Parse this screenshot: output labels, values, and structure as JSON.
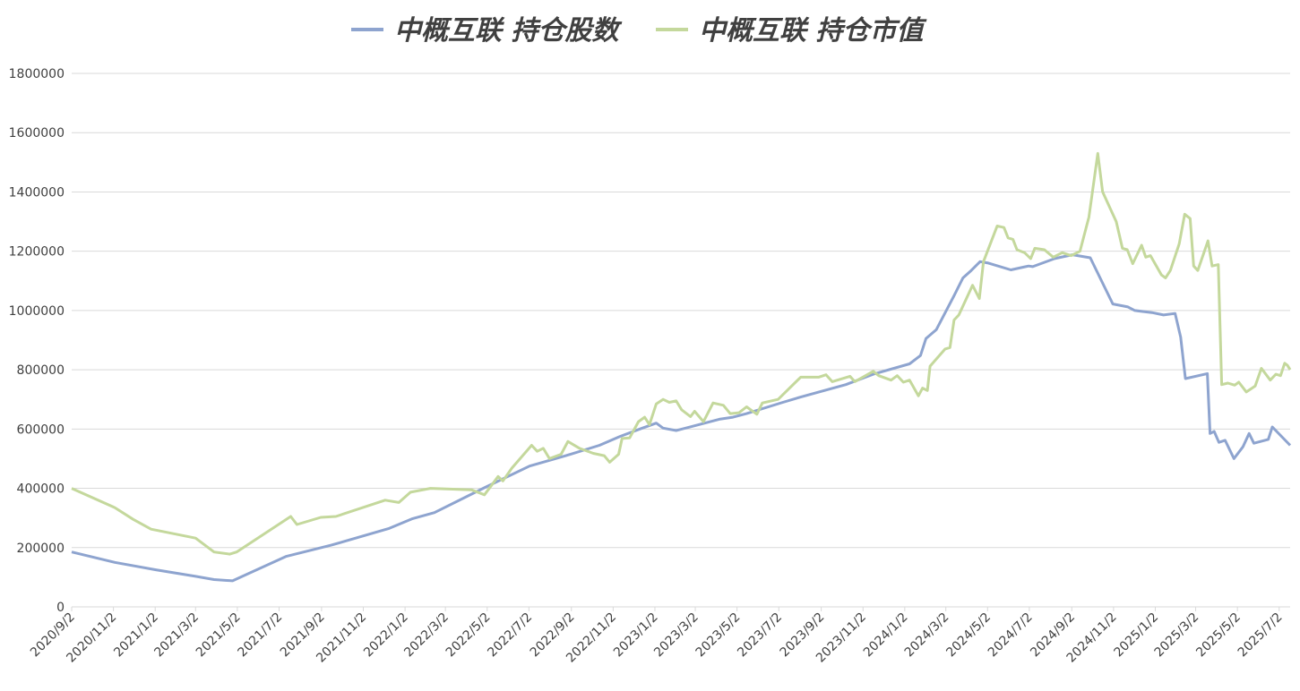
{
  "chart_data": {
    "type": "line",
    "legend": "top",
    "grid": true,
    "ylim": [
      0,
      1800000
    ],
    "yticks": [
      0,
      200000,
      400000,
      600000,
      800000,
      1000000,
      1200000,
      1400000,
      1600000,
      1800000
    ],
    "xlim": [
      "2020/9/2",
      "2025/7/18"
    ],
    "xticks": [
      "2020/9/2",
      "2020/11/2",
      "2021/1/2",
      "2021/3/2",
      "2021/5/2",
      "2021/7/2",
      "2021/9/2",
      "2021/11/2",
      "2022/1/2",
      "2022/3/2",
      "2022/5/2",
      "2022/7/2",
      "2022/9/2",
      "2022/11/2",
      "2023/1/2",
      "2023/3/2",
      "2023/5/2",
      "2023/7/2",
      "2023/9/2",
      "2023/11/2",
      "2024/1/2",
      "2024/3/2",
      "2024/5/2",
      "2024/7/2",
      "2024/9/2",
      "2024/11/2",
      "2025/1/2",
      "2025/3/2",
      "2025/5/2",
      "2025/7/2"
    ],
    "series": [
      {
        "name": "中概互联 持仓股数",
        "color": "#8ea4cf",
        "x": [
          "2020/9/2",
          "2020/11/4",
          "2021/1/3",
          "2021/3/2",
          "2021/3/29",
          "2021/4/25",
          "2021/7/12",
          "2021/9/16",
          "2021/12/10",
          "2022/1/12",
          "2022/2/14",
          "2022/4/28",
          "2022/7/3",
          "2022/8/25",
          "2022/10/13",
          "2022/11/12",
          "2022/12/11",
          "2023/1/4",
          "2023/1/14",
          "2023/2/2",
          "2023/2/19",
          "2023/4/6",
          "2023/4/26",
          "2023/5/16",
          "2023/7/8",
          "2023/8/3",
          "2023/10/8",
          "2023/11/17",
          "2024/1/9",
          "2024/1/25",
          "2024/2/2",
          "2024/2/17",
          "2024/3/14",
          "2024/3/27",
          "2024/4/8",
          "2024/4/21",
          "2024/5/3",
          "2024/6/5",
          "2024/7/1",
          "2024/7/7",
          "2024/8/8",
          "2024/9/3",
          "2024/9/29",
          "2024/11/1",
          "2024/11/23",
          "2024/12/3",
          "2024/12/28",
          "2025/1/14",
          "2025/1/31",
          "2025/2/8",
          "2025/2/15",
          "2025/3/19",
          "2025/3/23",
          "2025/3/29",
          "2025/4/5",
          "2025/4/14",
          "2025/4/27",
          "2025/5/10",
          "2025/5/19",
          "2025/5/26",
          "2025/6/16",
          "2025/6/22",
          "2025/7/18"
        ],
        "values": [
          185000,
          150000,
          125000,
          103000,
          92000,
          88000,
          170000,
          208000,
          265000,
          297000,
          318000,
          402000,
          475000,
          510000,
          545000,
          575000,
          600000,
          620000,
          603000,
          595000,
          605000,
          633000,
          640000,
          652000,
          690000,
          708000,
          750000,
          785000,
          820000,
          848000,
          905000,
          935000,
          1050000,
          1110000,
          1135000,
          1165000,
          1160000,
          1137000,
          1150000,
          1148000,
          1175000,
          1188000,
          1178000,
          1022000,
          1012000,
          1000000,
          993000,
          985000,
          990000,
          910000,
          770000,
          787000,
          585000,
          592000,
          555000,
          562000,
          500000,
          540000,
          585000,
          552000,
          565000,
          607000,
          545000
        ]
      },
      {
        "name": "中概互联 持仓市值",
        "color": "#c4d89c",
        "x": [
          "2020/9/2",
          "2020/11/4",
          "2020/12/1",
          "2020/12/27",
          "2021/3/2",
          "2021/3/29",
          "2021/4/21",
          "2021/5/1",
          "2021/7/19",
          "2021/7/28",
          "2021/9/1",
          "2021/9/23",
          "2021/12/4",
          "2021/12/24",
          "2022/1/10",
          "2022/2/8",
          "2022/4/9",
          "2022/4/28",
          "2022/5/18",
          "2022/5/25",
          "2022/6/7",
          "2022/7/6",
          "2022/7/14",
          "2022/7/23",
          "2022/8/1",
          "2022/8/18",
          "2022/8/28",
          "2022/9/14",
          "2022/10/4",
          "2022/10/20",
          "2022/10/28",
          "2022/11/10",
          "2022/11/15",
          "2022/11/26",
          "2022/12/9",
          "2022/12/18",
          "2022/12/25",
          "2023/1/4",
          "2023/1/14",
          "2023/1/23",
          "2023/2/2",
          "2023/2/10",
          "2023/2/23",
          "2023/3/1",
          "2023/3/14",
          "2023/3/28",
          "2023/4/12",
          "2023/4/22",
          "2023/5/5",
          "2023/5/16",
          "2023/5/31",
          "2023/6/8",
          "2023/7/1",
          "2023/8/3",
          "2023/8/29",
          "2023/9/9",
          "2023/9/18",
          "2023/10/14",
          "2023/10/21",
          "2023/11/17",
          "2023/11/25",
          "2023/12/13",
          "2023/12/22",
          "2023/12/31",
          "2024/1/9",
          "2024/1/22",
          "2024/1/28",
          "2024/2/4",
          "2024/2/8",
          "2024/3/1",
          "2024/3/8",
          "2024/3/14",
          "2024/3/21",
          "2024/4/10",
          "2024/4/20",
          "2024/4/26",
          "2024/5/16",
          "2024/5/26",
          "2024/6/1",
          "2024/6/8",
          "2024/6/14",
          "2024/6/25",
          "2024/7/4",
          "2024/7/10",
          "2024/7/24",
          "2024/8/6",
          "2024/8/19",
          "2024/9/1",
          "2024/9/14",
          "2024/9/27",
          "2024/10/10",
          "2024/10/17",
          "2024/11/6",
          "2024/11/15",
          "2024/11/22",
          "2024/11/30",
          "2024/12/13",
          "2024/12/19",
          "2024/12/26",
          "2025/1/11",
          "2025/1/17",
          "2025/1/24",
          "2025/2/6",
          "2025/2/14",
          "2025/2/22",
          "2025/2/27",
          "2025/3/5",
          "2025/3/20",
          "2025/3/26",
          "2025/4/4",
          "2025/4/9",
          "2025/4/18",
          "2025/4/28",
          "2025/5/4",
          "2025/5/15",
          "2025/5/28",
          "2025/6/6",
          "2025/6/19",
          "2025/6/27",
          "2025/7/4",
          "2025/7/10",
          "2025/7/14",
          "2025/7/18"
        ],
        "values": [
          400000,
          335000,
          295000,
          262000,
          232000,
          185000,
          178000,
          185000,
          305000,
          278000,
          302000,
          305000,
          360000,
          352000,
          387000,
          400000,
          395000,
          378000,
          440000,
          425000,
          468000,
          545000,
          525000,
          535000,
          500000,
          515000,
          558000,
          535000,
          518000,
          510000,
          488000,
          515000,
          568000,
          570000,
          625000,
          640000,
          615000,
          685000,
          700000,
          690000,
          695000,
          665000,
          642000,
          660000,
          625000,
          688000,
          680000,
          652000,
          655000,
          675000,
          650000,
          688000,
          700000,
          775000,
          775000,
          783000,
          760000,
          778000,
          760000,
          795000,
          780000,
          765000,
          780000,
          758000,
          765000,
          712000,
          738000,
          730000,
          812000,
          870000,
          875000,
          968000,
          985000,
          1085000,
          1040000,
          1165000,
          1285000,
          1280000,
          1245000,
          1240000,
          1205000,
          1195000,
          1175000,
          1210000,
          1205000,
          1180000,
          1195000,
          1185000,
          1200000,
          1315000,
          1530000,
          1400000,
          1300000,
          1210000,
          1205000,
          1158000,
          1220000,
          1180000,
          1185000,
          1120000,
          1110000,
          1135000,
          1225000,
          1325000,
          1310000,
          1150000,
          1135000,
          1235000,
          1150000,
          1155000,
          750000,
          755000,
          748000,
          758000,
          725000,
          745000,
          805000,
          765000,
          785000,
          780000,
          822000,
          815000,
          800000
        ]
      }
    ]
  }
}
